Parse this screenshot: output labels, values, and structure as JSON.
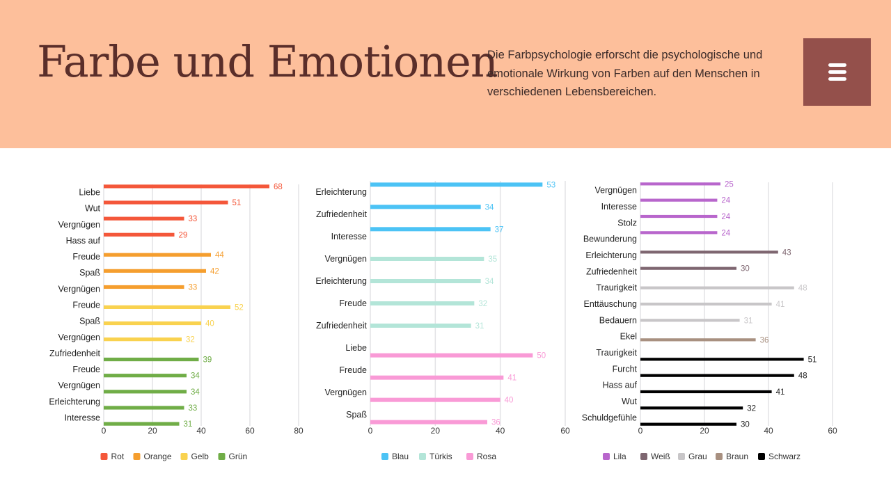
{
  "header": {
    "title": "Farbe und Emotionen",
    "description": "Die Farbpsychologie erforscht die psychologische und emotionale Wirkung von Farben auf den Menschen in verschiedenen Lebensbereichen.",
    "menu_icon": "hamburger-menu-icon",
    "background": "#fdbf9b",
    "accent": "#94504b"
  },
  "chart_data": [
    {
      "type": "bar",
      "orientation": "horizontal",
      "xlim": [
        0,
        80
      ],
      "ticks": [
        0,
        20,
        40,
        60,
        80
      ],
      "grid": true,
      "legend": "bottom",
      "categories": [
        "Liebe",
        "Wut",
        "Vergnügen",
        "Hass auf",
        "Freude",
        "Spaß",
        "Vergnügen",
        "Freude",
        "Spaß",
        "Vergnügen",
        "Zufriedenheit",
        "Freude",
        "Vergnügen",
        "Erleichterung",
        "Interesse"
      ],
      "series": [
        {
          "name": "Rot",
          "color": "#f4573a",
          "values": [
            68,
            51,
            33,
            29,
            null,
            null,
            null,
            null,
            null,
            null,
            null,
            null,
            null,
            null,
            null
          ]
        },
        {
          "name": "Orange",
          "color": "#f59e2e",
          "values": [
            null,
            null,
            null,
            null,
            44,
            42,
            33,
            null,
            null,
            null,
            null,
            null,
            null,
            null,
            null
          ]
        },
        {
          "name": "Gelb",
          "color": "#f9d24f",
          "values": [
            null,
            null,
            null,
            null,
            null,
            null,
            null,
            52,
            40,
            32,
            null,
            null,
            null,
            null,
            null
          ]
        },
        {
          "name": "Grün",
          "color": "#70ad47",
          "values": [
            null,
            null,
            null,
            null,
            null,
            null,
            null,
            null,
            null,
            null,
            39,
            34,
            34,
            33,
            31
          ]
        }
      ]
    },
    {
      "type": "bar",
      "orientation": "horizontal",
      "xlim": [
        0,
        60
      ],
      "ticks": [
        0,
        20,
        40,
        60
      ],
      "grid": true,
      "legend": "bottom",
      "categories": [
        "Erleichterung",
        "Zufriedenheit",
        "Interesse",
        "Vergnügen",
        "Erleichterung",
        "Freude",
        "Zufriedenheit",
        "Liebe",
        "Freude",
        "Vergnügen",
        "Spaß"
      ],
      "series": [
        {
          "name": "Blau",
          "color": "#4cc3f5",
          "values": [
            53,
            34,
            37,
            null,
            null,
            null,
            null,
            null,
            null,
            null,
            null
          ]
        },
        {
          "name": "Türkis",
          "color": "#b3e5d8",
          "values": [
            null,
            null,
            null,
            35,
            34,
            32,
            31,
            null,
            null,
            null,
            null
          ]
        },
        {
          "name": "Rosa",
          "color": "#f99ad6",
          "values": [
            null,
            null,
            null,
            null,
            null,
            null,
            null,
            50,
            41,
            40,
            36
          ]
        }
      ]
    },
    {
      "type": "bar",
      "orientation": "horizontal",
      "xlim": [
        0,
        60
      ],
      "ticks": [
        0,
        20,
        40,
        60
      ],
      "grid": true,
      "legend": "bottom",
      "categories": [
        "Vergnügen",
        "Interesse",
        "Stolz",
        "Bewunderung",
        "Erleichterung",
        "Zufriedenheit",
        "Traurigkeit",
        "Enttäuschung",
        "Bedauern",
        "Ekel",
        "Traurigkeit",
        "Furcht",
        "Hass auf",
        "Wut",
        "Schuldgefühle"
      ],
      "series": [
        {
          "name": "Lila",
          "color": "#b866cc",
          "values": [
            25,
            24,
            24,
            24,
            null,
            null,
            null,
            null,
            null,
            null,
            null,
            null,
            null,
            null,
            null
          ]
        },
        {
          "name": "Weiß",
          "color": "#7e6670",
          "values": [
            null,
            null,
            null,
            null,
            43,
            30,
            null,
            null,
            null,
            null,
            null,
            null,
            null,
            null,
            null
          ]
        },
        {
          "name": "Grau",
          "color": "#c8c6c8",
          "values": [
            null,
            null,
            null,
            null,
            null,
            null,
            48,
            41,
            31,
            null,
            null,
            null,
            null,
            null,
            null
          ]
        },
        {
          "name": "Braun",
          "color": "#a89080",
          "values": [
            null,
            null,
            null,
            null,
            null,
            null,
            null,
            null,
            null,
            36,
            null,
            null,
            null,
            null,
            null
          ]
        },
        {
          "name": "Schwarz",
          "color": "#000000",
          "values": [
            null,
            null,
            null,
            null,
            null,
            null,
            null,
            null,
            null,
            null,
            51,
            48,
            41,
            32,
            30
          ]
        }
      ]
    }
  ]
}
